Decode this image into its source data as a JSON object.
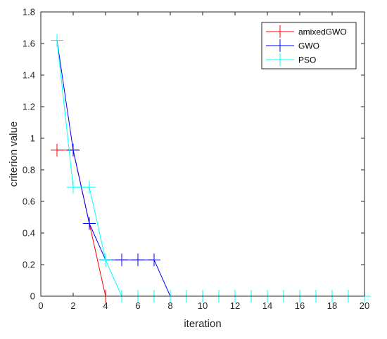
{
  "chart_data": {
    "type": "line",
    "title": "",
    "xlabel": "iteration",
    "ylabel": "criterion value",
    "xlim": [
      0,
      20
    ],
    "ylim": [
      0,
      1.8
    ],
    "xticks": [
      0,
      2,
      4,
      6,
      8,
      10,
      12,
      14,
      16,
      18,
      20
    ],
    "yticks": [
      0,
      0.2,
      0.4,
      0.6,
      0.8,
      1,
      1.2,
      1.4,
      1.6,
      1.8
    ],
    "xtick_labels": [
      "0",
      "2",
      "4",
      "6",
      "8",
      "10",
      "12",
      "14",
      "16",
      "18",
      "20"
    ],
    "ytick_labels": [
      "0",
      "0.2",
      "0.4",
      "0.6",
      "0.8",
      "1",
      "1.2",
      "1.4",
      "1.6",
      "1.8"
    ],
    "grid": false,
    "legend_position": "top-right",
    "marker": "+",
    "series": [
      {
        "name": "amixedGWO",
        "color": "#ff0000",
        "x": [
          1,
          2,
          3,
          4,
          5
        ],
        "y": [
          0.925,
          0.925,
          0.46,
          0,
          0
        ]
      },
      {
        "name": "GWO",
        "color": "#0000ff",
        "x": [
          1,
          2,
          3,
          4,
          5,
          6,
          7,
          8,
          9,
          10,
          11,
          12,
          13,
          14,
          15,
          16,
          17,
          18,
          19,
          20
        ],
        "y": [
          1.62,
          0.925,
          0.46,
          0.23,
          0.23,
          0.23,
          0.23,
          0,
          0,
          0,
          0,
          0,
          0,
          0,
          0,
          0,
          0,
          0,
          0,
          0
        ]
      },
      {
        "name": "PSO",
        "color": "#00ffff",
        "x": [
          1,
          2,
          3,
          4,
          5,
          6,
          7,
          8,
          9,
          10,
          11,
          12,
          13,
          14,
          15,
          16,
          17,
          18,
          19,
          20
        ],
        "y": [
          1.62,
          0.69,
          0.69,
          0.23,
          0,
          0,
          0,
          0,
          0,
          0,
          0,
          0,
          0,
          0,
          0,
          0,
          0,
          0,
          0,
          0
        ]
      }
    ]
  }
}
